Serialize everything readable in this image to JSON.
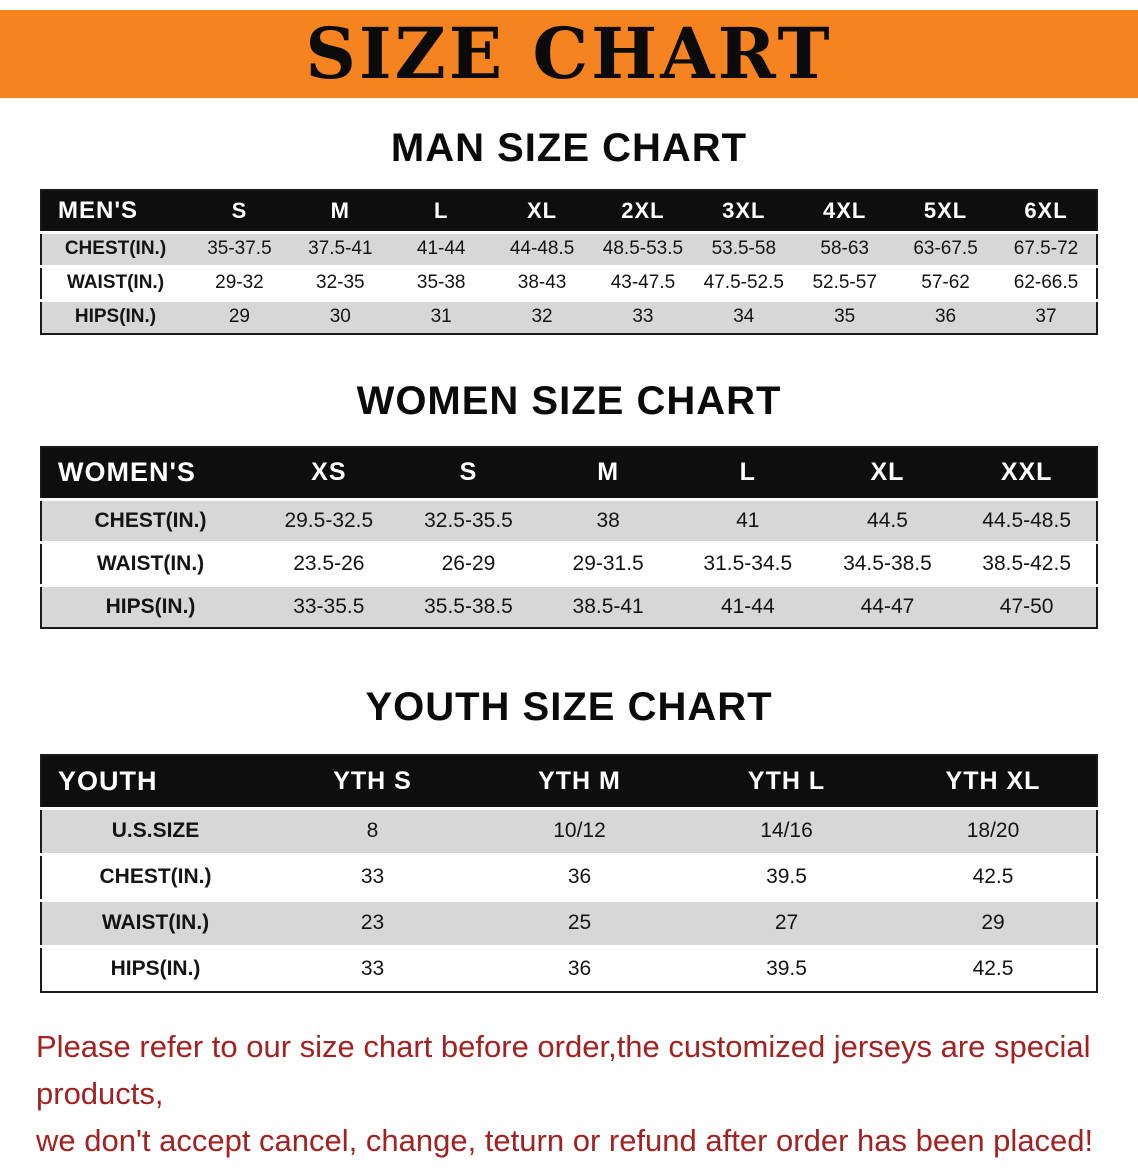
{
  "banner": {
    "title": "SIZE CHART"
  },
  "sections": [
    {
      "id": "mens",
      "heading": "MAN SIZE CHART",
      "table": {
        "header": [
          "MEN'S",
          "S",
          "M",
          "L",
          "XL",
          "2XL",
          "3XL",
          "4XL",
          "5XL",
          "6XL"
        ],
        "rows": [
          {
            "label": "CHEST(IN.)",
            "values": [
              "35-37.5",
              "37.5-41",
              "41-44",
              "44-48.5",
              "48.5-53.5",
              "53.5-58",
              "58-63",
              "63-67.5",
              "67.5-72"
            ]
          },
          {
            "label": "WAIST(IN.)",
            "values": [
              "29-32",
              "32-35",
              "35-38",
              "38-43",
              "43-47.5",
              "47.5-52.5",
              "52.5-57",
              "57-62",
              "62-66.5"
            ]
          },
          {
            "label": "HIPS(IN.)",
            "values": [
              "29",
              "30",
              "31",
              "32",
              "33",
              "34",
              "35",
              "36",
              "37"
            ]
          }
        ]
      }
    },
    {
      "id": "womens",
      "heading": "WOMEN SIZE CHART",
      "table": {
        "header": [
          "WOMEN'S",
          "XS",
          "S",
          "M",
          "L",
          "XL",
          "XXL"
        ],
        "rows": [
          {
            "label": "CHEST(IN.)",
            "values": [
              "29.5-32.5",
              "32.5-35.5",
              "38",
              "41",
              "44.5",
              "44.5-48.5"
            ]
          },
          {
            "label": "WAIST(IN.)",
            "values": [
              "23.5-26",
              "26-29",
              "29-31.5",
              "31.5-34.5",
              "34.5-38.5",
              "38.5-42.5"
            ]
          },
          {
            "label": "HIPS(IN.)",
            "values": [
              "33-35.5",
              "35.5-38.5",
              "38.5-41",
              "41-44",
              "44-47",
              "47-50"
            ]
          }
        ]
      }
    },
    {
      "id": "youth",
      "heading": "YOUTH SIZE CHART",
      "table": {
        "header": [
          "YOUTH",
          "YTH S",
          "YTH M",
          "YTH L",
          "YTH XL"
        ],
        "rows": [
          {
            "label": "U.S.SIZE",
            "values": [
              "8",
              "10/12",
              "14/16",
              "18/20"
            ]
          },
          {
            "label": "CHEST(IN.)",
            "values": [
              "33",
              "36",
              "39.5",
              "42.5"
            ]
          },
          {
            "label": "WAIST(IN.)",
            "values": [
              "23",
              "25",
              "27",
              "29"
            ]
          },
          {
            "label": "HIPS(IN.)",
            "values": [
              "33",
              "36",
              "39.5",
              "42.5"
            ]
          }
        ]
      }
    }
  ],
  "footer": {
    "line1": "Please refer to our size chart before order,the customized jerseys are special products,",
    "line2": "we don't accept cancel, change, teturn or refund after order has been placed!"
  },
  "colors": {
    "banner_orange": "#f5831f",
    "table_header_bg": "#0e0e0e",
    "row_stripe": "#d7d7d7",
    "disclaimer_red": "#a42121"
  }
}
